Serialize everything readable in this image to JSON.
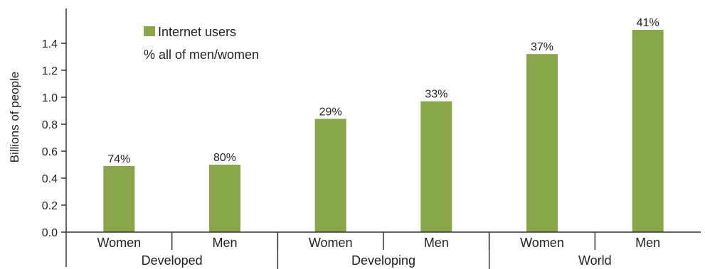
{
  "chart_data": {
    "type": "bar",
    "ylabel": "Billions of people",
    "ylim": [
      0,
      1.6
    ],
    "yticks": [
      "0.0",
      "0.2",
      "0.4",
      "0.6",
      "0.8",
      "1.0",
      "1.2",
      "1.4"
    ],
    "ytick_values": [
      0,
      0.2,
      0.4,
      0.6,
      0.8,
      1.0,
      1.2,
      1.4
    ],
    "categories": [
      "Women",
      "Men",
      "Women",
      "Men",
      "Women",
      "Men"
    ],
    "groups": [
      {
        "label": "Developed",
        "span": [
          0,
          1
        ]
      },
      {
        "label": "Developing",
        "span": [
          2,
          3
        ]
      },
      {
        "label": "World",
        "span": [
          4,
          5
        ]
      }
    ],
    "series": [
      {
        "name": "Internet users",
        "color": "#8aa64a",
        "values": [
          0.49,
          0.5,
          0.84,
          0.97,
          1.32,
          1.5
        ],
        "labels": [
          "74%",
          "80%",
          "29%",
          "33%",
          "37%",
          "41%"
        ]
      }
    ],
    "legend": {
      "position": "top-left",
      "items": [
        {
          "label": "Internet users",
          "swatch": true
        },
        {
          "label": "% all of men/women",
          "swatch": false
        }
      ]
    },
    "grid": false
  }
}
